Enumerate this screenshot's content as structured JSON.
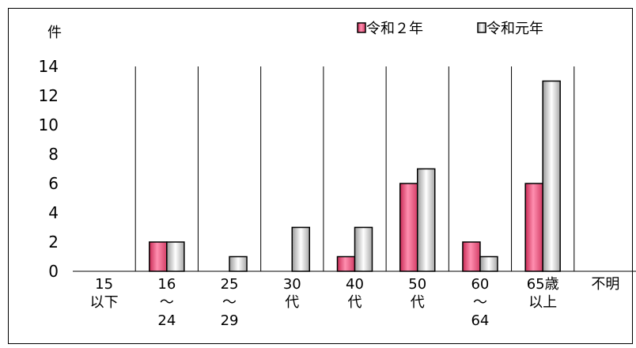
{
  "chart_data": {
    "type": "bar",
    "unit_label": "件",
    "categories": [
      [
        "15",
        "以下"
      ],
      [
        "16",
        "～",
        "24"
      ],
      [
        "25",
        "～",
        "29"
      ],
      [
        "30",
        "代"
      ],
      [
        "40",
        "代"
      ],
      [
        "50",
        "代"
      ],
      [
        "60",
        "～",
        "64"
      ],
      [
        "65歳",
        "以上"
      ],
      [
        "不明"
      ]
    ],
    "series": [
      {
        "name": "令和２年",
        "color": "#e8557a",
        "values": [
          0,
          2,
          0,
          0,
          1,
          6,
          2,
          6,
          0
        ]
      },
      {
        "name": "令和元年",
        "color": "#e6e6e6",
        "values": [
          0,
          2,
          1,
          3,
          3,
          7,
          1,
          13,
          0
        ]
      }
    ],
    "ylim": [
      0,
      14
    ],
    "yticks": [
      0,
      2,
      4,
      6,
      8,
      10,
      12,
      14
    ],
    "grid": "vertical category separators",
    "legend": "top-right"
  }
}
